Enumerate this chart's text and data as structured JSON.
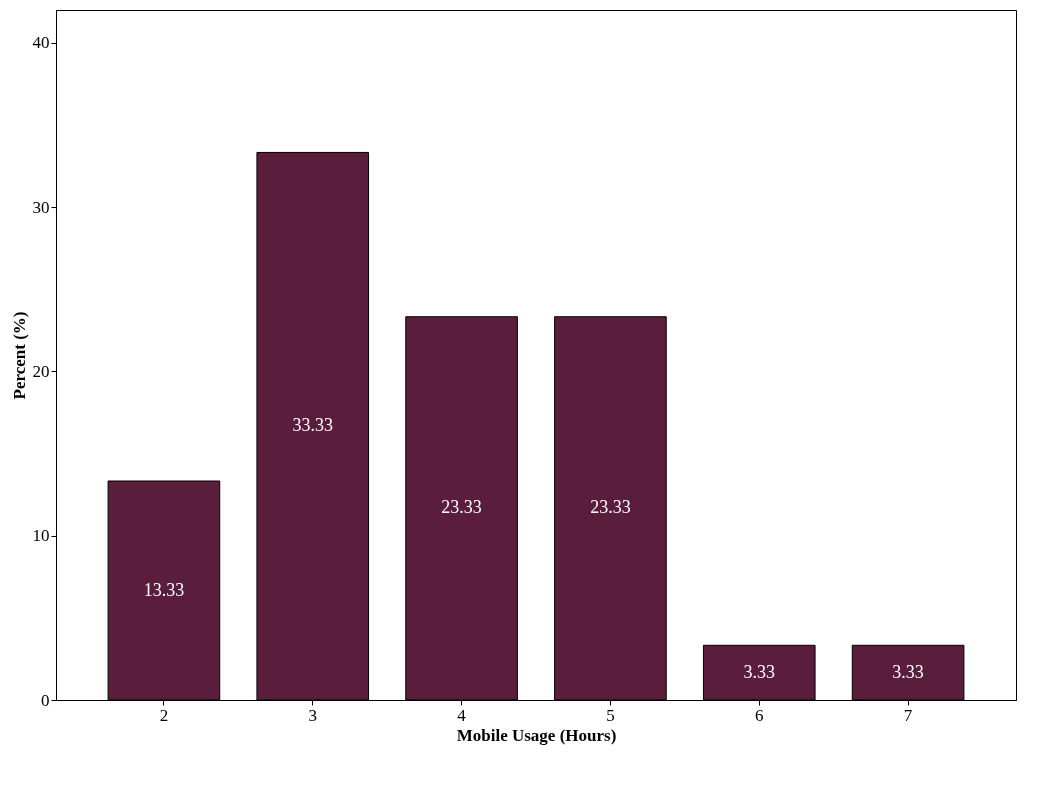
{
  "chart_data": {
    "type": "bar",
    "xlabel": "Mobile Usage (Hours)",
    "ylabel": "Percent (%)",
    "categories": [
      "2",
      "3",
      "4",
      "5",
      "6",
      "7"
    ],
    "values": [
      13.33,
      33.33,
      23.33,
      23.33,
      3.33,
      3.33
    ],
    "color": "#5a1e3c",
    "ylim": [
      0,
      42
    ],
    "yticks": [
      0,
      10,
      20,
      30,
      40
    ],
    "data_labels": true,
    "grid": false
  }
}
